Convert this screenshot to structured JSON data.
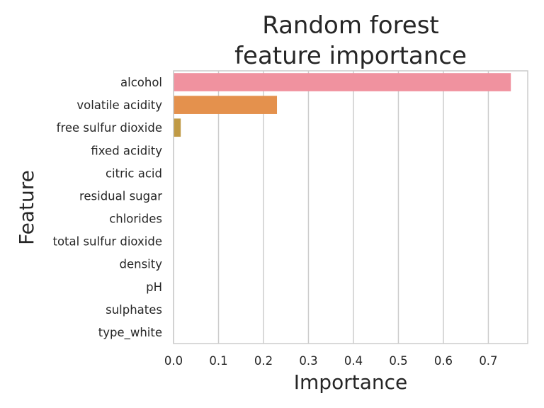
{
  "chart_data": {
    "type": "bar",
    "orientation": "horizontal",
    "title_lines": [
      "Random forest",
      "feature importance"
    ],
    "xlabel": "Importance",
    "ylabel": "Feature",
    "categories": [
      "alcohol",
      "volatile acidity",
      "free sulfur dioxide",
      "fixed acidity",
      "citric acid",
      "residual sugar",
      "chlorides",
      "total sulfur dioxide",
      "density",
      "pH",
      "sulphates",
      "type_white"
    ],
    "values": [
      0.75,
      0.23,
      0.016,
      0,
      0,
      0,
      0,
      0,
      0,
      0,
      0,
      0
    ],
    "colors": [
      "#f0929f",
      "#e4914d",
      "#c09a45",
      "#a1a449",
      "#7bac4f",
      "#52b25d",
      "#4cb096",
      "#4aadae",
      "#4aa9c4",
      "#6a9fe0",
      "#b592e6",
      "#e27ed2"
    ],
    "xticks": [
      "0.0",
      "0.1",
      "0.2",
      "0.3",
      "0.4",
      "0.5",
      "0.6",
      "0.7"
    ],
    "xtick_values": [
      0,
      0.1,
      0.2,
      0.3,
      0.4,
      0.5,
      0.6,
      0.7
    ],
    "xlim": [
      0,
      0.7875
    ],
    "grid": "vertical"
  }
}
